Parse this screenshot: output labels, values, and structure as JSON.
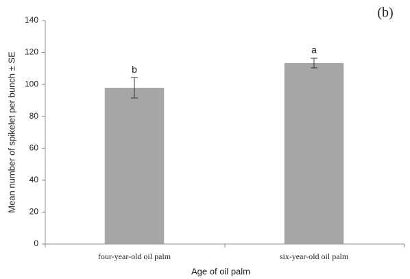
{
  "chart_data": {
    "type": "bar",
    "panel_label": "(b)",
    "x_label": "Age of oil palm",
    "y_label": "Mean number of spikelet per bunch ± SE",
    "categories": [
      "four-year-old oil palm",
      "six-year-old oil palm"
    ],
    "values": [
      97.9,
      113.4
    ],
    "errors": [
      6.4,
      3.0
    ],
    "annotations": [
      "b",
      "a"
    ],
    "color": "#a6a6a6",
    "ylim": [
      0,
      140
    ],
    "yticks": [
      0,
      20,
      40,
      60,
      80,
      100,
      120,
      140
    ],
    "grid": false
  }
}
